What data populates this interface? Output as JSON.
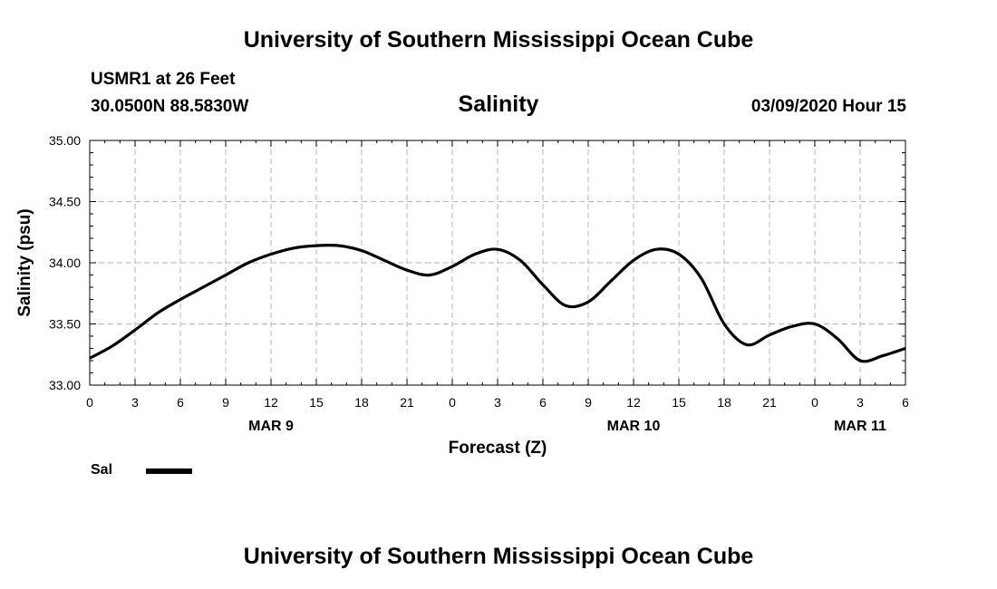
{
  "header": {
    "title": "University of Southern Mississippi Ocean Cube",
    "station": "USMR1 at 26 Feet",
    "coords": "30.0500N 88.5830W",
    "variable": "Salinity",
    "datetime": "03/09/2020 Hour 15"
  },
  "footer": {
    "title": "University of Southern Mississippi Ocean Cube"
  },
  "legend": {
    "label": "Sal"
  },
  "chart_data": {
    "type": "line",
    "ylabel": "Salinity (psu)",
    "xlabel": "Forecast (Z)",
    "ylim": [
      33.0,
      35.0
    ],
    "yticks": [
      "33.00",
      "33.50",
      "34.00",
      "34.50",
      "35.00"
    ],
    "xlim": [
      0,
      54
    ],
    "xticks": [
      "0",
      "3",
      "6",
      "9",
      "12",
      "15",
      "18",
      "21",
      "0",
      "3",
      "6",
      "9",
      "12",
      "15",
      "18",
      "21",
      "0",
      "3",
      "6"
    ],
    "date_labels": [
      {
        "label": "MAR 9",
        "at_hour": 12
      },
      {
        "label": "MAR 10",
        "at_hour": 36
      },
      {
        "label": "MAR 11",
        "at_hour": 51
      }
    ],
    "grid": true,
    "series": [
      {
        "name": "Sal",
        "x": [
          0,
          1.5,
          3,
          4.5,
          6,
          7.5,
          9,
          10.5,
          12,
          13.5,
          15,
          16.5,
          18,
          19.5,
          21,
          22.5,
          24,
          25.5,
          27,
          28.5,
          30,
          31.5,
          33,
          34.5,
          36,
          37.5,
          39,
          40.5,
          42,
          43.5,
          45,
          46.5,
          48,
          49.5,
          51,
          52.5,
          54
        ],
        "values": [
          33.22,
          33.32,
          33.45,
          33.59,
          33.7,
          33.8,
          33.9,
          34.0,
          34.07,
          34.12,
          34.14,
          34.14,
          34.1,
          34.02,
          33.94,
          33.9,
          33.97,
          34.07,
          34.11,
          34.02,
          33.82,
          33.65,
          33.68,
          33.85,
          34.02,
          34.11,
          34.07,
          33.87,
          33.5,
          33.33,
          33.41,
          33.48,
          33.5,
          33.38,
          33.2,
          33.24,
          33.3
        ]
      }
    ]
  }
}
